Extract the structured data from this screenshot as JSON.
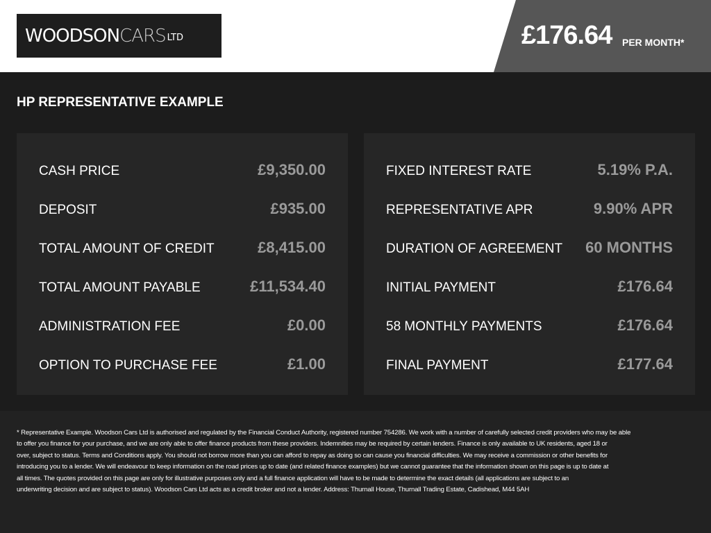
{
  "header": {
    "logo": {
      "bold": "WOODSON",
      "light": "CARS",
      "suffix": "LTD"
    },
    "price": "£176.64",
    "per_month": "PER MONTH*"
  },
  "title": "HP REPRESENTATIVE EXAMPLE",
  "left_panel": [
    {
      "label": "CASH PRICE",
      "value": "£9,350.00"
    },
    {
      "label": "DEPOSIT",
      "value": "£935.00"
    },
    {
      "label": "TOTAL AMOUNT OF CREDIT",
      "value": "£8,415.00"
    },
    {
      "label": "TOTAL AMOUNT PAYABLE",
      "value": "£11,534.40"
    },
    {
      "label": "ADMINISTRATION FEE",
      "value": "£0.00"
    },
    {
      "label": "OPTION TO PURCHASE FEE",
      "value": "£1.00"
    }
  ],
  "right_panel": [
    {
      "label": "FIXED INTEREST RATE",
      "value": "5.19% P.A."
    },
    {
      "label": "REPRESENTATIVE APR",
      "value": "9.90% APR"
    },
    {
      "label": "DURATION OF AGREEMENT",
      "value": "60 MONTHS"
    },
    {
      "label": "INITIAL PAYMENT",
      "value": "£176.64"
    },
    {
      "label": "58 MONTHLY PAYMENTS",
      "value": "£176.64"
    },
    {
      "label": "FINAL PAYMENT",
      "value": "£177.64"
    }
  ],
  "disclaimer": [
    "* Representative Example. Woodson Cars Ltd is authorised and regulated by the Financial Conduct Authority, registered number 754286. We work with a number of carefully selected credit providers who may be able",
    "to offer you finance for your purchase, and we are only able to offer finance products from these providers. Indemnities may be required by certain lenders. Finance is only available to UK residents, aged 18 or",
    "over, subject to status. Terms and Conditions apply. You should not borrow more than you can afford to repay as doing so can cause you financial difficulties. We may receive a commission or other benefits for",
    "introducing you to a lender. We will endeavour to keep information on the road prices up to date (and related finance examples) but we cannot guarantee that the information shown on this page is up to date at",
    "all times. The quotes provided on this page are only for illustrative purposes only and a full finance application will have to be made to determine the exact details (all applications are subject to an",
    "underwriting decision and are subject to status). Woodson Cars Ltd acts as a credit broker and not a lender. Address: Thurnall House, Thurnall Trading Estate, Cadishead, M44 5AH"
  ]
}
